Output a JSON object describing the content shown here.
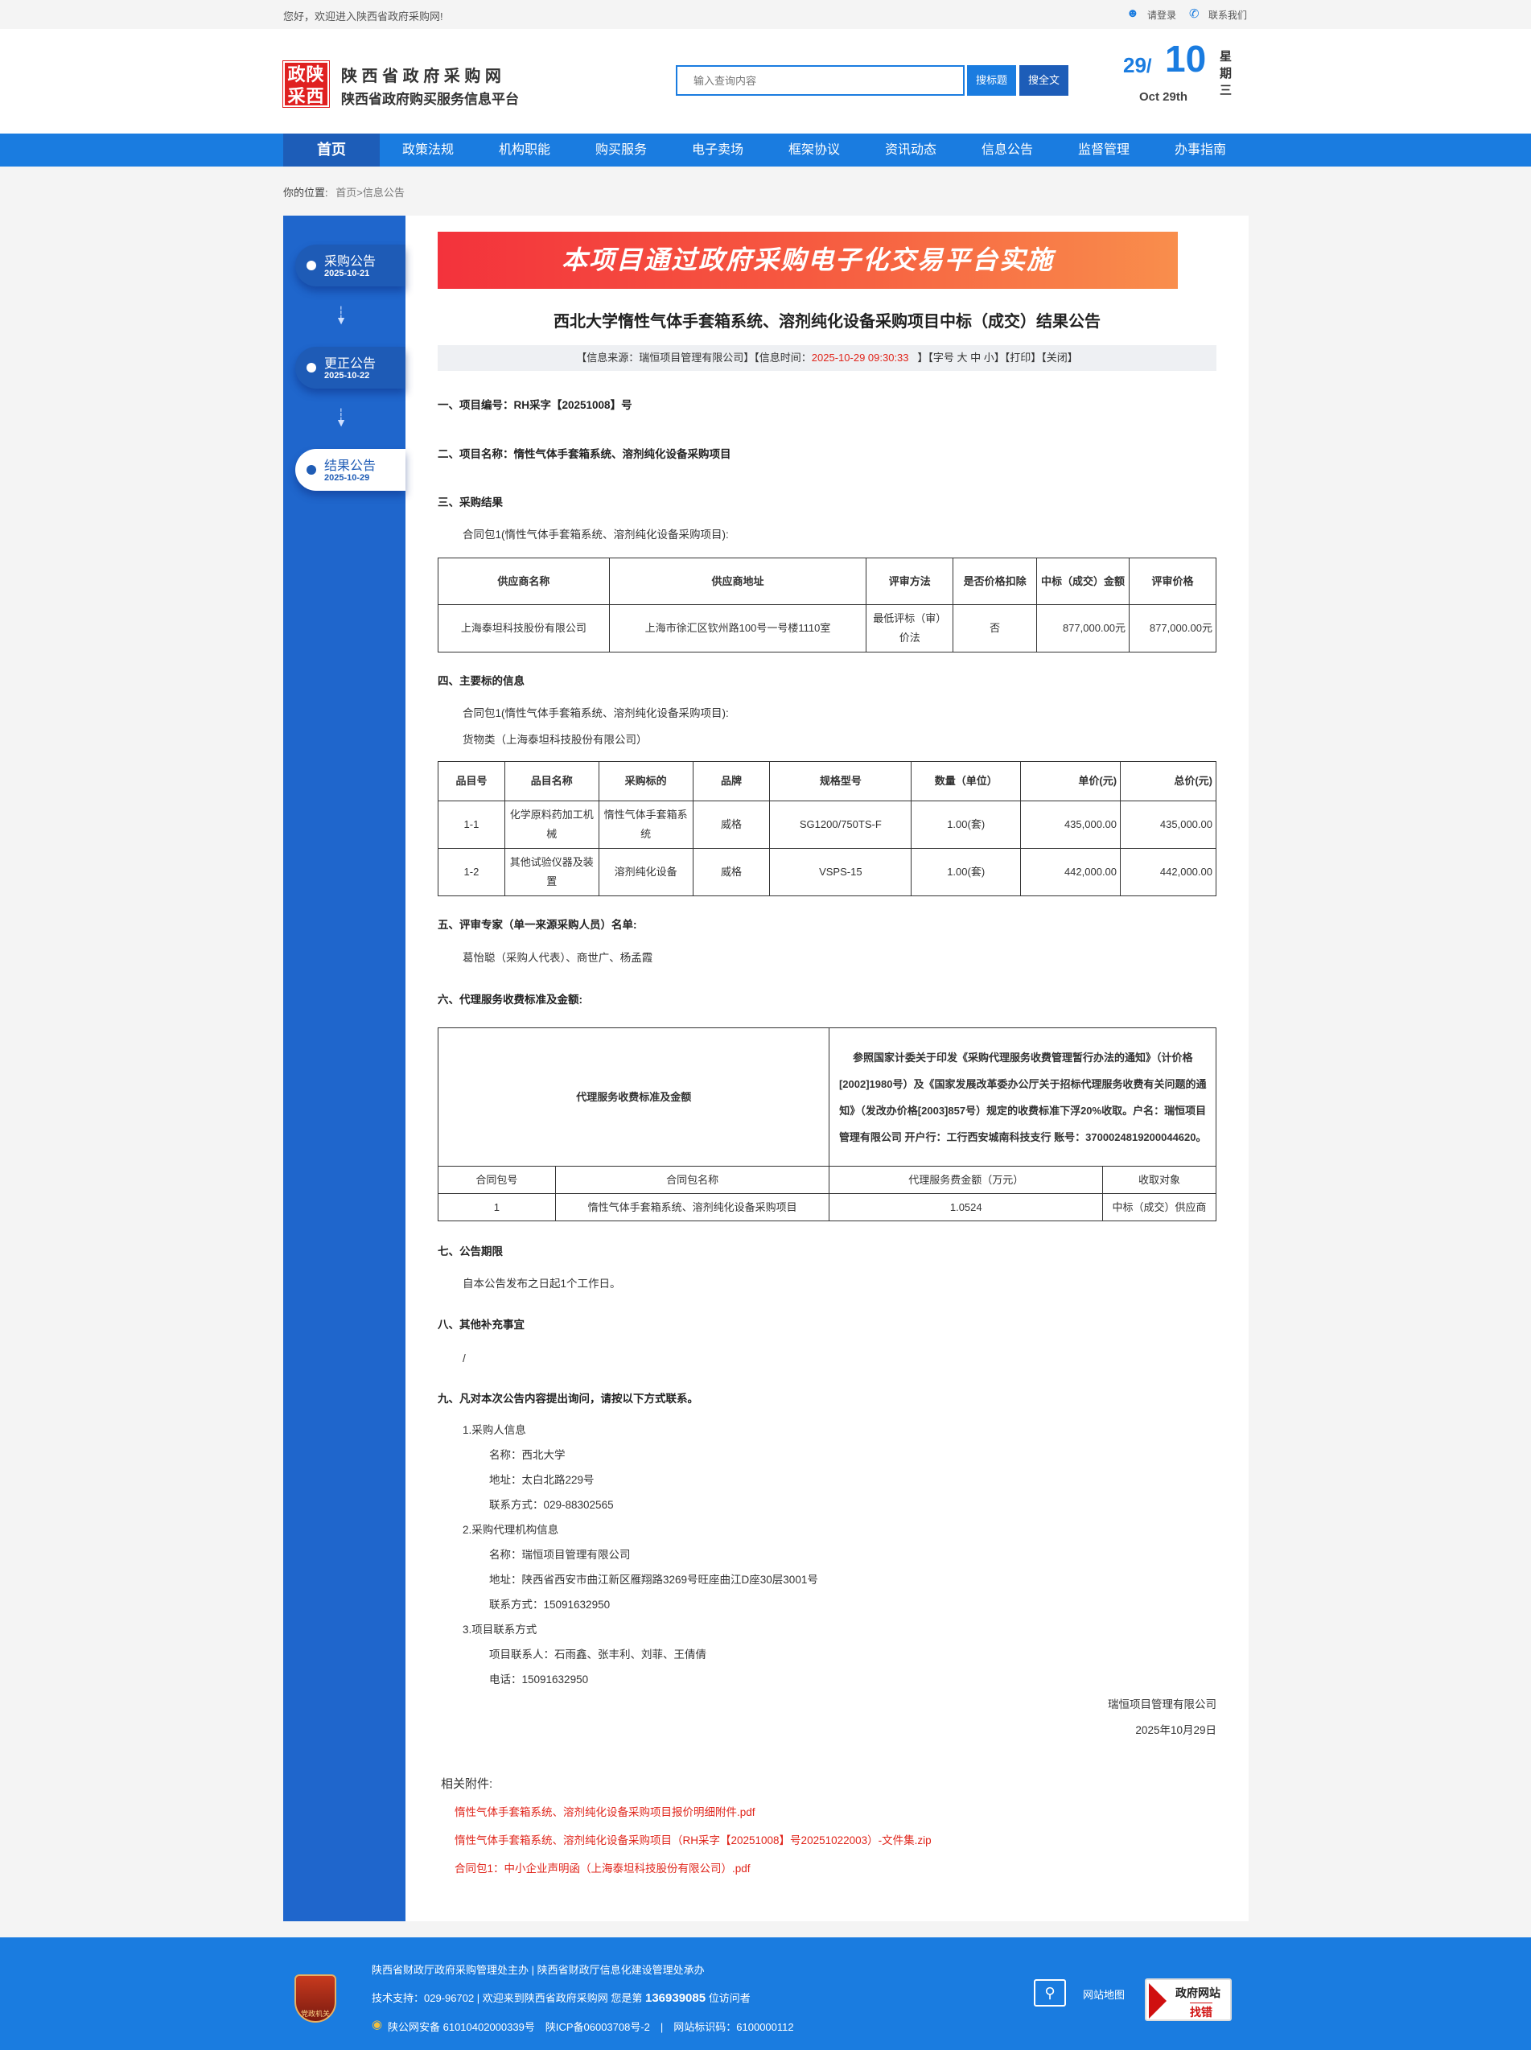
{
  "topbar": {
    "welcome": "您好，欢迎进入陕西省政府采购网!",
    "login": "请登录",
    "contact": "联系我们"
  },
  "header": {
    "logo_text": "政陕采西",
    "site_name": "陕 西 省 政 府 采 购 网",
    "site_sub": "陕西省政府购买服务信息平台",
    "search_placeholder": "输入查询内容",
    "btn_title": "搜标题",
    "btn_full": "搜全文",
    "date_day": "29",
    "date_month": "10",
    "date_weekday": "星期三",
    "date_en": "Oct 29th"
  },
  "nav": [
    "首页",
    "政策法规",
    "机构职能",
    "购买服务",
    "电子卖场",
    "框架协议",
    "资讯动态",
    "信息公告",
    "监督管理",
    "办事指南"
  ],
  "breadcrumb": {
    "label": "你的位置:",
    "home": "首页",
    "current": ">信息公告"
  },
  "sidebar": [
    {
      "title": "采购公告",
      "date": "2025-10-21"
    },
    {
      "title": "更正公告",
      "date": "2025-10-22"
    },
    {
      "title": "结果公告",
      "date": "2025-10-29"
    }
  ],
  "colors": {
    "nav": "#1a7ce0",
    "nav_active": "#1d5db8",
    "sidebar": "#1f66cc",
    "link_red": "#e0251b"
  },
  "article": {
    "banner": "本项目通过政府采购电子化交易平台实施",
    "title": "西北大学惰性气体手套箱系统、溶剂纯化设备采购项目中标（成交）结果公告",
    "info": {
      "source": "【信息来源：瑞恒项目管理有限公司】【信息时间：",
      "time": "2025-10-29 09:30:33",
      "tail": "】【字号 大 中 小】【打印】【关闭】"
    },
    "s1": "一、项目编号：RH采字【20251008】号",
    "s2": "二、项目名称：惰性气体手套箱系统、溶剂纯化设备采购项目",
    "s3": "三、采购结果",
    "pkg": "合同包1(惰性气体手套箱系统、溶剂纯化设备采购项目):",
    "t1": {
      "head": [
        "供应商名称",
        "供应商地址",
        "评审方法",
        "是否价格扣除",
        "中标（成交）金额",
        "评审价格"
      ],
      "row": [
        "上海泰坦科技股份有限公司",
        "上海市徐汇区钦州路100号一号楼1110室",
        "最低评标（审）价法",
        "否",
        "877,000.00元",
        "877,000.00元"
      ]
    },
    "s4": "四、主要标的信息",
    "pkg2": "合同包1(惰性气体手套箱系统、溶剂纯化设备采购项目):",
    "goods": "货物类（上海泰坦科技股份有限公司）",
    "t2": {
      "head": [
        "品目号",
        "品目名称",
        "采购标的",
        "品牌",
        "规格型号",
        "数量（单位）",
        "单价(元)",
        "总价(元)"
      ],
      "rows": [
        [
          "1-1",
          "化学原料药加工机械",
          "惰性气体手套箱系统",
          "威格",
          "SG1200/750TS-F",
          "1.00(套)",
          "435,000.00",
          "435,000.00"
        ],
        [
          "1-2",
          "其他试验仪器及装置",
          "溶剂纯化设备",
          "威格",
          "VSPS-15",
          "1.00(套)",
          "442,000.00",
          "442,000.00"
        ]
      ]
    },
    "s5": "五、评审专家（单一来源采购人员）名单:",
    "experts": "葛怡聪（采购人代表）、商世广、杨孟霞",
    "s6": "六、代理服务收费标准及金额:",
    "t3": {
      "label": "代理服务收费标准及金额",
      "desc": "参照国家计委关于印发《采购代理服务收费管理暂行办法的通知》（计价格[2002]1980号）及《国家发展改革委办公厅关于招标代理服务收费有关问题的通知》（发改办价格[2003]857号）规定的收费标准下浮20%收取。户名：瑞恒项目管理有限公司 开户行：工行西安城南科技支行 账号：3700024819200044620。",
      "head": [
        "合同包号",
        "合同包名称",
        "代理服务费金额（万元）",
        "收取对象"
      ],
      "row": [
        "1",
        "惰性气体手套箱系统、溶剂纯化设备采购项目",
        "1.0524",
        "中标（成交）供应商"
      ]
    },
    "s7": "七、公告期限",
    "period": "自本公告发布之日起1个工作日。",
    "s8": "八、其他补充事宜",
    "other": "/",
    "s9": "九、凡对本次公告内容提出询问，请按以下方式联系。",
    "c": {
      "h1": "1.采购人信息",
      "n1": "名称：西北大学",
      "a1": "地址：太白北路229号",
      "p1": "联系方式：029-88302565",
      "h2": "2.采购代理机构信息",
      "n2": "名称：瑞恒项目管理有限公司",
      "a2": "地址：陕西省西安市曲江新区雁翔路3269号旺座曲江D座30层3001号",
      "p2": "联系方式：15091632950",
      "h3": "3.项目联系方式",
      "n3": "项目联系人：石雨鑫、张丰利、刘菲、王倩倩",
      "p3": "电话：15091632950"
    },
    "sign_org": "瑞恒项目管理有限公司",
    "sign_date": "2025年10月29日",
    "attach_label": "相关附件:",
    "attachments": [
      "惰性气体手套箱系统、溶剂纯化设备采购项目报价明细附件.pdf",
      "惰性气体手套箱系统、溶剂纯化设备采购项目（RH采字【20251008】号20251022003）-文件集.zip",
      "合同包1：中小企业声明函（上海泰坦科技股份有限公司）.pdf"
    ]
  },
  "footer": {
    "badge": "党政机关",
    "line1": "陕西省财政厅政府采购管理处主办 | 陕西省财政厅信息化建设管理处承办",
    "line2a": "技术支持：029-96702 | 欢迎来到陕西省政府采购网 您是第 ",
    "visits": "136939085",
    "line2b": " 位访问者",
    "line3": "陕公网安备 61010402000339号　陕ICP备06003708号-2　|　网站标识码：6100000112",
    "sitemap": "网站地图",
    "err_top": "政府网站",
    "err_bottom": "找错"
  }
}
